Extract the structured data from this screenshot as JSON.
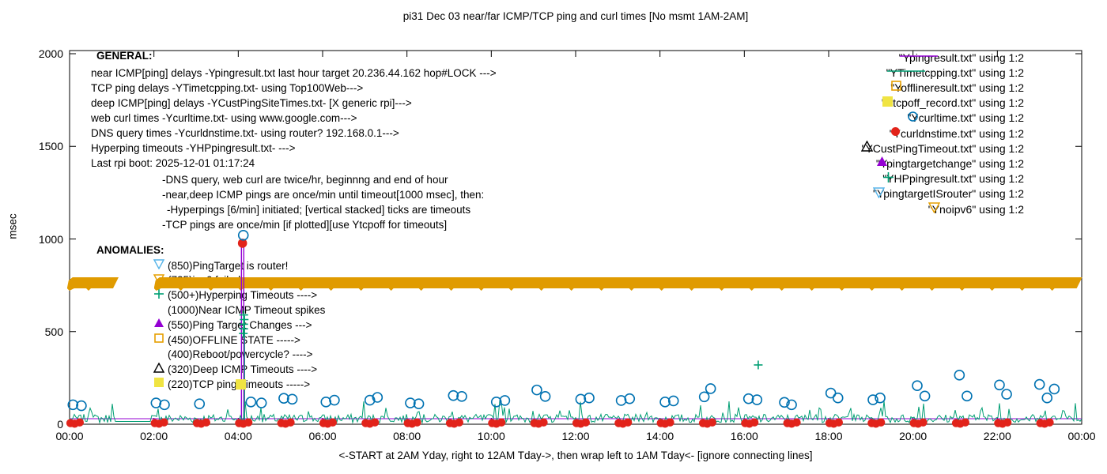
{
  "title": "pi31 Dec 03  near/far ICMP/TCP ping and curl times [No msmt 1AM-2AM]",
  "ylabel": "msec",
  "xlabel": "<-START at 2AM Yday, right to 12AM Tday->, then wrap left to 1AM Tday<- [ignore connecting lines]",
  "yticks": [
    "0",
    "500",
    "1000",
    "1500",
    "2000"
  ],
  "ytick_values": [
    0,
    500,
    1000,
    1500,
    2000
  ],
  "xticks": [
    "00:00",
    "02:00",
    "04:00",
    "06:00",
    "08:00",
    "10:00",
    "12:00",
    "14:00",
    "16:00",
    "18:00",
    "20:00",
    "22:00",
    "00:00"
  ],
  "colors": {
    "purple": "#9400D3",
    "teal": "#009E73",
    "orange": "#E69F00",
    "band": "#E09B00",
    "yellow": "#F0E442",
    "blue": "#0072B2",
    "skyblue": "#56B4E9",
    "red": "#E2231A",
    "black": "#000000"
  },
  "legend": [
    {
      "label": "\"Ypingresult.txt\" using 1:2",
      "marker": "line",
      "color": "purple"
    },
    {
      "label": "\"YTimetcpping.txt\" using 1:2",
      "marker": "line",
      "color": "teal"
    },
    {
      "label": "\"Yofflineresult.txt\" using 1:2",
      "marker": "square-open",
      "color": "orange"
    },
    {
      "label": "\"Ytcpoff_record.txt\" using 1:2",
      "marker": "square-fill",
      "color": "yellow"
    },
    {
      "label": "\"Ycurltime.txt\" using 1:2",
      "marker": "circle-open",
      "color": "blue"
    },
    {
      "label": "\"Ycurldnstime.txt\" using 1:2",
      "marker": "circle-fill",
      "color": "red"
    },
    {
      "label": "\"YCustPingTimeout.txt\" using 1:2",
      "marker": "tri-open",
      "color": "black"
    },
    {
      "label": "\"Ypingtargetchange\" using 1:2",
      "marker": "tri-fill",
      "color": "purple"
    },
    {
      "label": "\"YHPpingresult.txt\" using 1:2",
      "marker": "plus",
      "color": "teal"
    },
    {
      "label": "\"YpingtargetISrouter\" using 1:2",
      "marker": "invtri-open",
      "color": "skyblue"
    },
    {
      "label": "\"Ynoipv6\" using 1:2",
      "marker": "invtri-open",
      "color": "orange"
    }
  ],
  "general": {
    "heading": "GENERAL:",
    "lines": [
      "near ICMP[ping] delays -Ypingresult.txt last hour target 20.236.44.162 hop#LOCK --->",
      "TCP ping delays -YTimetcpping.txt- using Top100Web--->",
      "deep ICMP[ping] delays -YCustPingSiteTimes.txt- [X generic rpi]--->",
      "web curl times -Ycurltime.txt- using www.google.com--->",
      "DNS query times -Ycurldnstime.txt- using router? 192.168.0.1--->",
      "Hyperping timeouts -YHPpingresult.txt- --->",
      "Last rpi boot: 2025-12-01 01:17:24"
    ],
    "notes": [
      {
        "text": "-DNS query, web curl are twice/hr, beginnng and end of hour",
        "indent": 0
      },
      {
        "text": "-near,deep ICMP pings are once/min until timeout[1000 msec], then:",
        "indent": 0
      },
      {
        "text": "-Hyperpings [6/min] initiated; [vertical stacked] ticks are timeouts",
        "indent": 6
      },
      {
        "text": "-TCP pings are once/min [if plotted][use Ytcpoff for timeouts]",
        "indent": 0
      }
    ]
  },
  "anomalies": {
    "heading": "ANOMALIES:",
    "rows": [
      {
        "marker": "invtri-open",
        "color": "skyblue",
        "text": "(850)PingTarget is router!"
      },
      {
        "marker": "invtri-open",
        "color": "orange",
        "text": "(725)ipv6 failed"
      },
      {
        "marker": "plus",
        "color": "teal",
        "text": "(500+)Hyperping Timeouts ---->"
      },
      {
        "marker": null,
        "color": null,
        "text": "(1000)Near ICMP Timeout spikes"
      },
      {
        "marker": "tri-fill",
        "color": "purple",
        "text": "(550)Ping Target Changes --->"
      },
      {
        "marker": "square-open",
        "color": "orange",
        "text": "(450)OFFLINE STATE ----->"
      },
      {
        "marker": null,
        "color": null,
        "text": "(400)Reboot/powercycle? ---->"
      },
      {
        "marker": "tri-open",
        "color": "black",
        "text": "(320)Deep ICMP Timeouts ---->"
      },
      {
        "marker": "square-fill",
        "color": "yellow",
        "text": "(220)TCP ping Timeouts ----->"
      }
    ]
  },
  "chart_data": {
    "type": "scatter",
    "x_axis": {
      "range_hours": [
        0,
        24
      ],
      "tick_step_hours": 2
    },
    "y_axis": {
      "range": [
        0,
        2000
      ],
      "unit": "msec",
      "ticks": [
        0,
        500,
        1000,
        1500,
        2000
      ]
    },
    "offline_band": {
      "series": "Ynoipv6",
      "msec": 725,
      "segments_hours": [
        [
          -0.06,
          1.2
        ],
        [
          2.0,
          24.05
        ]
      ],
      "note": "solid band of stacked inverted-triangle markers at ~725 msec, gap 01:12-02:00"
    },
    "curl_times": {
      "series": "Ycurltime.txt",
      "points_hour_msec": [
        [
          0.08,
          105
        ],
        [
          0.28,
          100
        ],
        [
          2.05,
          115
        ],
        [
          2.25,
          105
        ],
        [
          3.08,
          110
        ],
        [
          4.12,
          1020
        ],
        [
          4.3,
          120
        ],
        [
          4.55,
          115
        ],
        [
          5.08,
          140
        ],
        [
          5.28,
          135
        ],
        [
          6.08,
          120
        ],
        [
          6.28,
          130
        ],
        [
          7.12,
          130
        ],
        [
          7.3,
          145
        ],
        [
          8.08,
          115
        ],
        [
          8.28,
          110
        ],
        [
          9.1,
          155
        ],
        [
          9.3,
          150
        ],
        [
          10.12,
          120
        ],
        [
          10.32,
          128
        ],
        [
          11.08,
          185
        ],
        [
          11.28,
          150
        ],
        [
          12.12,
          135
        ],
        [
          12.32,
          142
        ],
        [
          13.08,
          128
        ],
        [
          13.28,
          138
        ],
        [
          14.12,
          120
        ],
        [
          14.32,
          126
        ],
        [
          15.05,
          148
        ],
        [
          15.2,
          192
        ],
        [
          16.1,
          138
        ],
        [
          16.3,
          132
        ],
        [
          16.95,
          118
        ],
        [
          17.12,
          105
        ],
        [
          18.05,
          168
        ],
        [
          18.22,
          142
        ],
        [
          19.05,
          132
        ],
        [
          19.22,
          142
        ],
        [
          20.1,
          208
        ],
        [
          20.28,
          152
        ],
        [
          21.1,
          265
        ],
        [
          21.28,
          152
        ],
        [
          22.05,
          212
        ],
        [
          22.22,
          162
        ],
        [
          23.0,
          215
        ],
        [
          23.18,
          142
        ],
        [
          23.35,
          190
        ]
      ]
    },
    "dns_times": {
      "series": "Ycurldnstime.txt",
      "cluster_hours": [
        0,
        2,
        3,
        4,
        5,
        6,
        7,
        8,
        9,
        10,
        11,
        12,
        13,
        14,
        15,
        16,
        17,
        18,
        19,
        20,
        21,
        22,
        23
      ],
      "cluster_offsets_hour": [
        0.02,
        0.12,
        0.24
      ],
      "cluster_msec": [
        6,
        3,
        10
      ],
      "timeout_spike": [
        4.1,
        977
      ]
    },
    "near_icmp": {
      "series": "Ypingresult.txt",
      "baseline_msec": 30,
      "timeout_spikes": [
        {
          "hour": 4.075,
          "msec": 977
        },
        {
          "hour": 4.131,
          "msec": 977
        }
      ]
    },
    "tcp_ping": {
      "series": "YTimetcpping.txt",
      "baseline_msec": 15,
      "jitter_max_msec": 60,
      "occasional_spike_msec": 130,
      "no_measurement_hours": [
        1.08,
        1.95
      ]
    },
    "hyperping_timeouts": {
      "series": "YHPpingresult.txt",
      "points_hour_msec": [
        [
          4.12,
          490
        ],
        [
          4.13,
          515
        ],
        [
          4.13,
          540
        ],
        [
          4.14,
          565
        ],
        [
          4.13,
          590
        ],
        [
          16.33,
          320
        ]
      ],
      "vertical_tick": {
        "hour": 4.15,
        "from_msec": 0,
        "to_msec": 585
      }
    },
    "tcp_offline": {
      "series": "Ytcpoff_record.txt",
      "points_hour_msec": [
        [
          4.06,
          215
        ]
      ]
    }
  }
}
